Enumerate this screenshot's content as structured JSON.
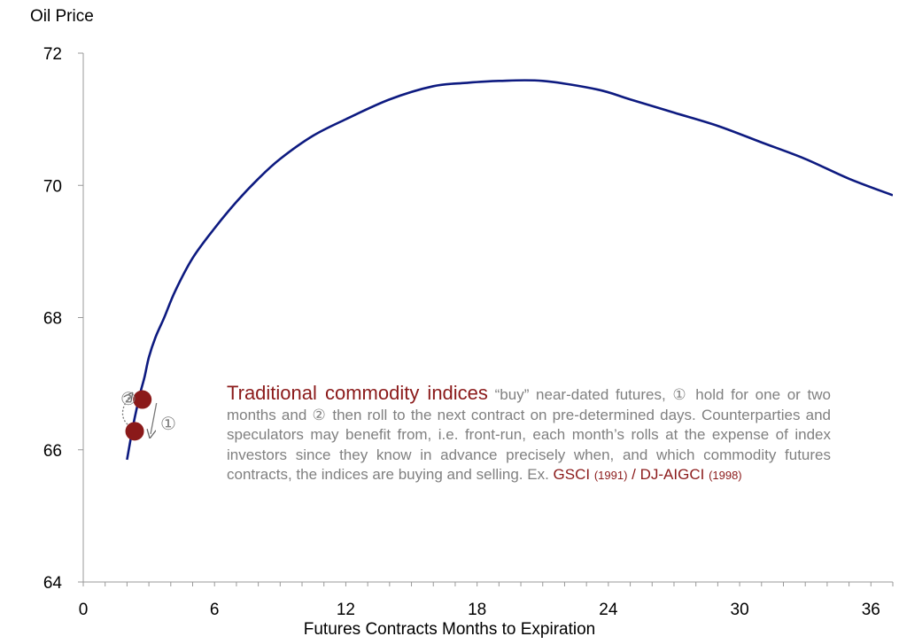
{
  "chart_data": {
    "type": "line",
    "title": "",
    "xlabel": "Futures Contracts Months to Expiration",
    "ylabel": "Oil Price",
    "xlim": [
      0,
      37
    ],
    "ylim": [
      64,
      72
    ],
    "x_ticks": [
      0,
      6,
      12,
      18,
      24,
      30,
      36
    ],
    "y_ticks": [
      64,
      66,
      68,
      70,
      72
    ],
    "grid": false,
    "line_color": "#0d1a80",
    "series": [
      {
        "x": [
          2,
          2.3,
          2.6,
          2.8,
          3,
          3.3,
          3.7,
          4.2,
          5,
          6,
          7,
          8,
          9,
          10.5,
          12,
          14,
          16,
          17.5,
          19,
          21,
          23.5,
          25,
          27,
          29,
          31,
          33,
          35,
          37
        ],
        "values": [
          65.85,
          66.4,
          66.85,
          67.1,
          67.4,
          67.7,
          68.0,
          68.4,
          68.9,
          69.35,
          69.75,
          70.1,
          70.4,
          70.75,
          71.0,
          71.3,
          71.5,
          71.55,
          71.58,
          71.58,
          71.45,
          71.3,
          71.1,
          70.9,
          70.65,
          70.4,
          70.1,
          69.85
        ]
      }
    ],
    "markers": [
      {
        "x": 2.35,
        "y": 66.28,
        "color": "#8b1a1a"
      },
      {
        "x": 2.7,
        "y": 66.76,
        "color": "#8b1a1a"
      }
    ],
    "marker_labels": {
      "hold": "①",
      "roll": "②"
    }
  },
  "annotation": {
    "title": "Traditional commodity indices",
    "t1": " “buy” near-dated futures, ",
    "sym1": "①",
    "t2": " hold for one or two months and ",
    "sym2": "②",
    "t3": " then roll to the next contract on pre-determined days. Counterparties and speculators may benefit from, i.e. front-run, each month’s rolls at the expense of index investors since they know in advance precisely when, and which commodity futures contracts, the indices are buying and selling. Ex. ",
    "gsci": "GSCI",
    "gsci_year": "(1991)",
    "sep": " / ",
    "djaigci": "DJ-AIGCI",
    "djaigci_year": "(1998)"
  }
}
